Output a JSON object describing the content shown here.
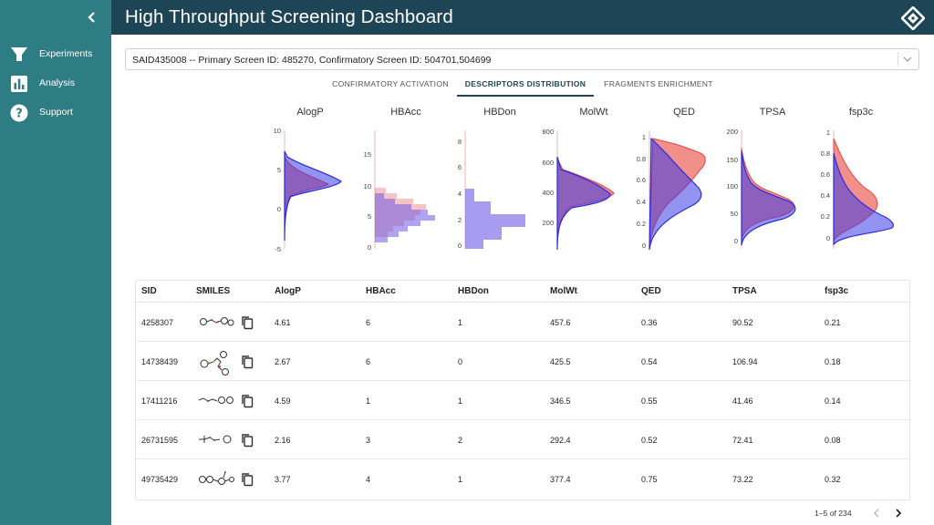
{
  "app": {
    "title": "High Throughput Screening Dashboard"
  },
  "sidebar": {
    "items": [
      {
        "label": "Experiments",
        "icon": "funnel-icon"
      },
      {
        "label": "Analysis",
        "icon": "bar-chart-icon"
      },
      {
        "label": "Support",
        "icon": "help-icon"
      }
    ]
  },
  "selector": {
    "value": "SAID435008 -- Primary Screen ID: 485270, Confirmatory Screen ID: 504701,504699"
  },
  "tabs": [
    {
      "label": "CONFIRMATORY ACTIVATION",
      "active": false
    },
    {
      "label": "DESCRIPTORS DISTRIBUTION",
      "active": true
    },
    {
      "label": "FRAGMENTS ENRICHMENT",
      "active": false
    }
  ],
  "colors": {
    "sidebar": "#2f7d84",
    "header": "#1e4555",
    "series_red": "#e8453c",
    "series_blue": "#3a3ae8",
    "overlap": "#7b4fc0"
  },
  "chart_data": [
    {
      "type": "area",
      "title": "AlogP",
      "ylim": [
        -5,
        10
      ],
      "ticks": [
        10,
        5,
        0,
        -5
      ]
    },
    {
      "type": "bar",
      "title": "HBAcc",
      "ylim": [
        0,
        15
      ],
      "ticks": [
        15,
        10,
        5,
        0
      ]
    },
    {
      "type": "bar",
      "title": "HBDon",
      "ylim": [
        0,
        9
      ],
      "ticks": [
        8,
        6,
        4,
        2,
        0
      ]
    },
    {
      "type": "area",
      "title": "MolWt",
      "ylim": [
        0,
        800
      ],
      "ticks": [
        800,
        600,
        400,
        200
      ]
    },
    {
      "type": "area",
      "title": "QED",
      "ylim": [
        0,
        1
      ],
      "ticks": [
        1,
        0.8,
        0.6,
        0.4,
        0.2,
        0
      ]
    },
    {
      "type": "area",
      "title": "TPSA",
      "ylim": [
        0,
        200
      ],
      "ticks": [
        200,
        150,
        100,
        50,
        0
      ]
    },
    {
      "type": "area",
      "title": "fsp3c",
      "ylim": [
        0,
        1
      ],
      "ticks": [
        1,
        0.8,
        0.6,
        0.4,
        0.2,
        0
      ]
    }
  ],
  "table": {
    "columns": [
      "SID",
      "SMILES",
      "AlogP",
      "HBAcc",
      "HBDon",
      "MolWt",
      "QED",
      "TPSA",
      "fsp3c"
    ],
    "rows": [
      {
        "SID": "4258307",
        "AlogP": "4.61",
        "HBAcc": "6",
        "HBDon": "1",
        "MolWt": "457.6",
        "QED": "0.36",
        "TPSA": "90.52",
        "fsp3c": "0.21"
      },
      {
        "SID": "14738439",
        "AlogP": "2.67",
        "HBAcc": "6",
        "HBDon": "0",
        "MolWt": "425.5",
        "QED": "0.54",
        "TPSA": "106.94",
        "fsp3c": "0.18"
      },
      {
        "SID": "17411216",
        "AlogP": "4.59",
        "HBAcc": "1",
        "HBDon": "1",
        "MolWt": "346.5",
        "QED": "0.55",
        "TPSA": "41.46",
        "fsp3c": "0.14"
      },
      {
        "SID": "26731595",
        "AlogP": "2.16",
        "HBAcc": "3",
        "HBDon": "2",
        "MolWt": "292.4",
        "QED": "0.52",
        "TPSA": "72.41",
        "fsp3c": "0.08"
      },
      {
        "SID": "49735429",
        "AlogP": "3.77",
        "HBAcc": "4",
        "HBDon": "1",
        "MolWt": "377.4",
        "QED": "0.75",
        "TPSA": "73.22",
        "fsp3c": "0.32"
      }
    ]
  },
  "pagination": {
    "info": "1–5 of 234"
  }
}
